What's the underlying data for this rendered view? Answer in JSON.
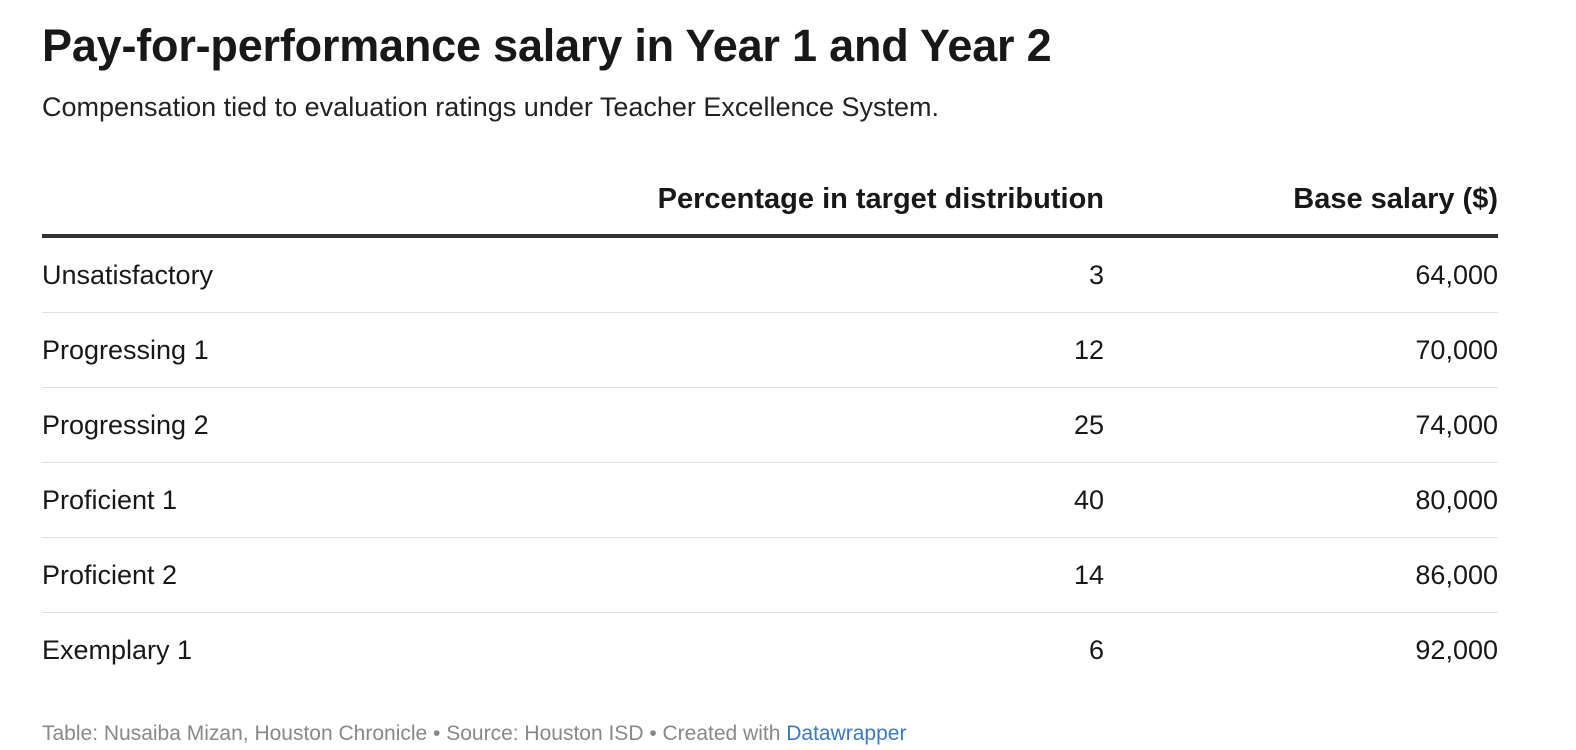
{
  "header": {
    "title": "Pay-for-performance salary in Year 1 and Year 2",
    "subtitle": "Compensation tied to evaluation ratings under Teacher Excellence System."
  },
  "footer": {
    "prefix": "Table: Nusaiba Mizan, Houston Chronicle • Source: Houston ISD • Created with ",
    "link_label": "Datawrapper"
  },
  "colors": {
    "text": "#181818",
    "header_rule": "#333333",
    "row_rule": "#e1e1e1",
    "footer_text": "#888888",
    "link": "#3a7abf"
  },
  "chart_data": {
    "type": "table",
    "title": "Pay-for-performance salary in Year 1 and Year 2",
    "subtitle": "Compensation tied to evaluation ratings under Teacher Excellence System.",
    "columns": [
      "",
      "Percentage in target distribution",
      "Base salary ($)"
    ],
    "rows": [
      {
        "rating": "Unsatisfactory",
        "percentage": "3",
        "salary": "64,000"
      },
      {
        "rating": "Progressing 1",
        "percentage": "12",
        "salary": "70,000"
      },
      {
        "rating": "Progressing 2",
        "percentage": "25",
        "salary": "74,000"
      },
      {
        "rating": "Proficient 1",
        "percentage": "40",
        "salary": "80,000"
      },
      {
        "rating": "Proficient 2",
        "percentage": "14",
        "salary": "86,000"
      },
      {
        "rating": "Exemplary 1",
        "percentage": "6",
        "salary": "92,000"
      }
    ]
  }
}
